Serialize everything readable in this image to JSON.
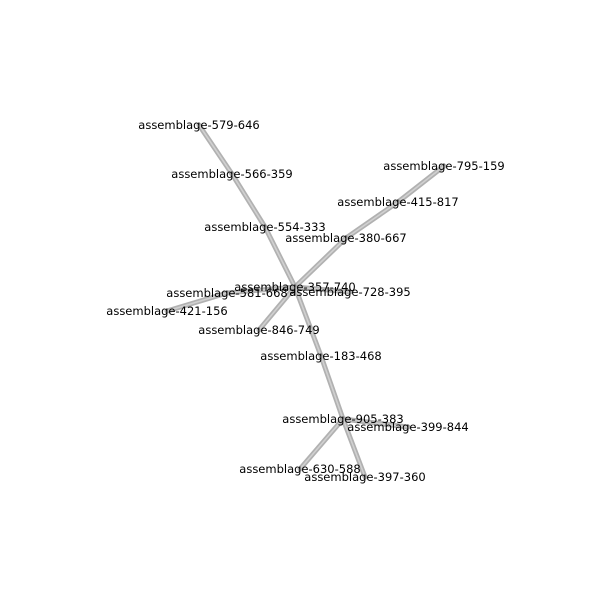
{
  "diagram": {
    "edge_color": "#a9a9a9",
    "edge_highlight_color": "#d8d8d8",
    "label_color": "#000000",
    "nodes": [
      {
        "id": "assemblage-579-646"
      },
      {
        "id": "assemblage-566-359"
      },
      {
        "id": "assemblage-554-333"
      },
      {
        "id": "assemblage-795-159"
      },
      {
        "id": "assemblage-415-817"
      },
      {
        "id": "assemblage-380-667"
      },
      {
        "id": "assemblage-357-740"
      },
      {
        "id": "assemblage-581-668"
      },
      {
        "id": "assemblage-728-395"
      },
      {
        "id": "assemblage-421-156"
      },
      {
        "id": "assemblage-846-749"
      },
      {
        "id": "assemblage-183-468"
      },
      {
        "id": "assemblage-905-383"
      },
      {
        "id": "assemblage-399-844"
      },
      {
        "id": "assemblage-630-588"
      },
      {
        "id": "assemblage-397-360"
      }
    ],
    "edges": [
      [
        "assemblage-579-646",
        "assemblage-566-359"
      ],
      [
        "assemblage-566-359",
        "assemblage-554-333"
      ],
      [
        "assemblage-554-333",
        "assemblage-357-740"
      ],
      [
        "assemblage-795-159",
        "assemblage-415-817"
      ],
      [
        "assemblage-415-817",
        "assemblage-380-667"
      ],
      [
        "assemblage-380-667",
        "assemblage-357-740"
      ],
      [
        "assemblage-357-740",
        "assemblage-728-395"
      ],
      [
        "assemblage-357-740",
        "assemblage-581-668"
      ],
      [
        "assemblage-581-668",
        "assemblage-421-156"
      ],
      [
        "assemblage-357-740",
        "assemblage-846-749"
      ],
      [
        "assemblage-357-740",
        "assemblage-183-468"
      ],
      [
        "assemblage-183-468",
        "assemblage-905-383"
      ],
      [
        "assemblage-905-383",
        "assemblage-399-844"
      ],
      [
        "assemblage-905-383",
        "assemblage-630-588"
      ],
      [
        "assemblage-905-383",
        "assemblage-397-360"
      ]
    ]
  }
}
